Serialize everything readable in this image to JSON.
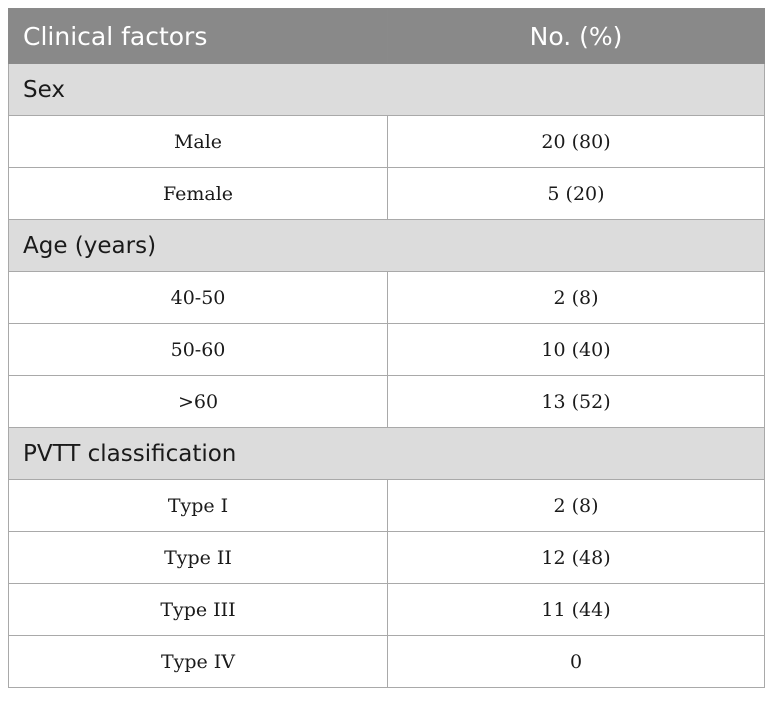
{
  "table": {
    "headers": {
      "factor": "Clinical factors",
      "value": "No. (%)"
    },
    "groups": [
      {
        "title": "Sex",
        "rows": [
          {
            "factor": "Male",
            "value": "20 (80)"
          },
          {
            "factor": "Female",
            "value": "5 (20)"
          }
        ]
      },
      {
        "title": "Age (years)",
        "rows": [
          {
            "factor": "40-50",
            "value": "2 (8)"
          },
          {
            "factor": "50-60",
            "value": "10 (40)"
          },
          {
            "factor": ">60",
            "value": "13 (52)"
          }
        ]
      },
      {
        "title": "PVTT classification",
        "rows": [
          {
            "factor": "Type I",
            "value": "2 (8)"
          },
          {
            "factor": "Type II",
            "value": "12 (48)"
          },
          {
            "factor": "Type III",
            "value": "11 (44)"
          },
          {
            "factor": "Type IV",
            "value": "0"
          }
        ]
      }
    ]
  },
  "colors": {
    "header_bg": "#898989",
    "header_text": "#ffffff",
    "section_bg": "#dcdcdc",
    "row_bg": "#ffffff",
    "border": "#a9a9a9"
  }
}
